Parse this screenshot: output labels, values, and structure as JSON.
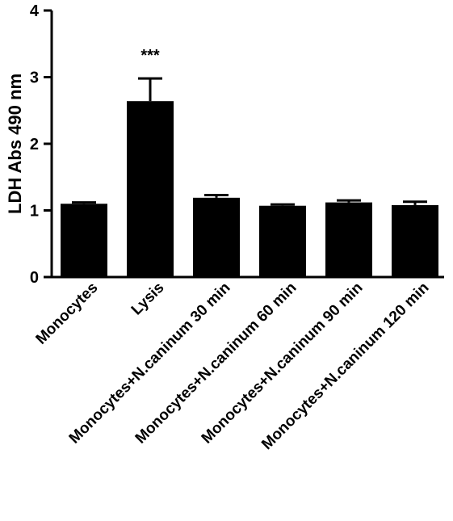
{
  "chart_data": {
    "type": "bar",
    "ylabel": "LDH Abs 490 nm",
    "ylim": [
      0,
      4
    ],
    "yticks": [
      "0",
      "1",
      "2",
      "3",
      "4"
    ],
    "categories": [
      "Monocytes",
      "Lysis",
      "Monocytes+N.caninum 30 min",
      "Monocytes+N.caninum 60 min",
      "Monocytes+N.caninum 90 min",
      "Monocytes+N.caninum 120 min"
    ],
    "values": [
      1.1,
      2.64,
      1.19,
      1.07,
      1.12,
      1.08
    ],
    "errors": [
      0.02,
      0.34,
      0.04,
      0.02,
      0.03,
      0.05
    ],
    "annotations": [
      "",
      "***",
      "",
      "",
      "",
      ""
    ],
    "colors": {
      "bar": "#000000",
      "axis": "#000000"
    }
  }
}
